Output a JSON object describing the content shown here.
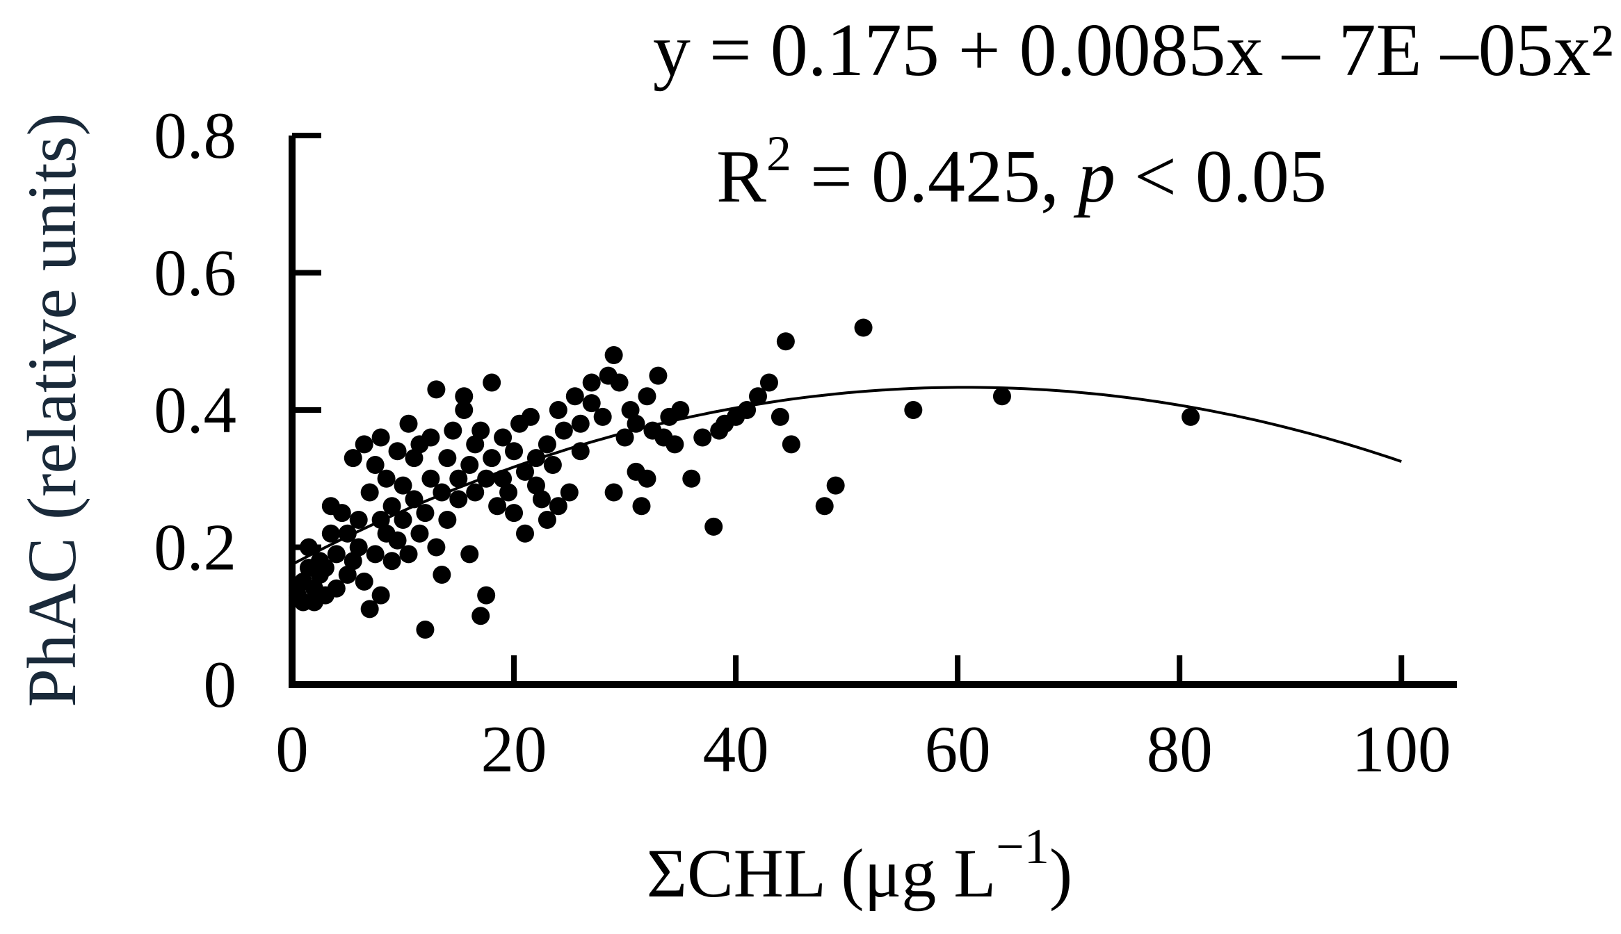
{
  "chart_data": {
    "type": "scatter",
    "title": "",
    "xlabel": "ΣCHL (μg L⁻¹)",
    "xlabel_parts": {
      "main": "ΣCHL (μg L",
      "superscript": "−1",
      "close": ")"
    },
    "ylabel": "PhAC (relative units)",
    "xlim": [
      0,
      105
    ],
    "ylim": [
      0,
      0.8
    ],
    "x_ticks": [
      0,
      20,
      40,
      60,
      80,
      100
    ],
    "x_tick_labels": [
      "0",
      "20",
      "40",
      "60",
      "80",
      "100"
    ],
    "y_ticks": [
      0,
      0.2,
      0.4,
      0.6,
      0.8
    ],
    "y_tick_labels": [
      "0",
      "0.2",
      "0.4",
      "0.6",
      "0.8"
    ],
    "grid": false,
    "fit": {
      "type": "quadratic",
      "coefficients": [
        0.175,
        0.0085,
        -7e-05
      ],
      "x_range": [
        0,
        100
      ],
      "equation_text": "y = 0.175 + 0.0085x – 7E –05x²",
      "r2_label": "R",
      "r2_superscript": "2",
      "r2_text": " = 0.425, ",
      "p_symbol": "p",
      "p_text": " < 0.05"
    },
    "colors": {
      "points": "#000000",
      "axis": "#000000",
      "ylabel": "#1a2a3a",
      "xlabel": "#000000"
    },
    "points": [
      [
        0.5,
        0.13
      ],
      [
        1,
        0.12
      ],
      [
        1,
        0.15
      ],
      [
        1.5,
        0.17
      ],
      [
        1.5,
        0.2
      ],
      [
        2,
        0.12
      ],
      [
        2,
        0.14
      ],
      [
        2.5,
        0.16
      ],
      [
        2.5,
        0.18
      ],
      [
        3,
        0.13
      ],
      [
        3,
        0.17
      ],
      [
        3.5,
        0.22
      ],
      [
        3.5,
        0.26
      ],
      [
        4,
        0.14
      ],
      [
        4,
        0.19
      ],
      [
        4.5,
        0.25
      ],
      [
        5,
        0.16
      ],
      [
        5,
        0.22
      ],
      [
        5.5,
        0.33
      ],
      [
        5.5,
        0.18
      ],
      [
        6,
        0.2
      ],
      [
        6,
        0.24
      ],
      [
        6.5,
        0.15
      ],
      [
        6.5,
        0.35
      ],
      [
        7,
        0.11
      ],
      [
        7,
        0.28
      ],
      [
        7.5,
        0.19
      ],
      [
        7.5,
        0.32
      ],
      [
        8,
        0.13
      ],
      [
        8,
        0.24
      ],
      [
        8,
        0.36
      ],
      [
        8.5,
        0.22
      ],
      [
        8.5,
        0.3
      ],
      [
        9,
        0.18
      ],
      [
        9,
        0.26
      ],
      [
        9.5,
        0.34
      ],
      [
        9.5,
        0.21
      ],
      [
        10,
        0.29
      ],
      [
        10,
        0.24
      ],
      [
        10.5,
        0.38
      ],
      [
        10.5,
        0.19
      ],
      [
        11,
        0.27
      ],
      [
        11,
        0.33
      ],
      [
        11.5,
        0.22
      ],
      [
        11.5,
        0.35
      ],
      [
        12,
        0.08
      ],
      [
        12,
        0.25
      ],
      [
        12.5,
        0.3
      ],
      [
        12.5,
        0.36
      ],
      [
        13,
        0.2
      ],
      [
        13,
        0.43
      ],
      [
        13.5,
        0.28
      ],
      [
        13.5,
        0.16
      ],
      [
        14,
        0.33
      ],
      [
        14,
        0.24
      ],
      [
        14.5,
        0.37
      ],
      [
        15,
        0.3
      ],
      [
        15,
        0.27
      ],
      [
        15.5,
        0.4
      ],
      [
        15.5,
        0.42
      ],
      [
        16,
        0.32
      ],
      [
        16,
        0.19
      ],
      [
        16.5,
        0.35
      ],
      [
        16.5,
        0.28
      ],
      [
        17,
        0.37
      ],
      [
        17,
        0.1
      ],
      [
        17.5,
        0.13
      ],
      [
        17.5,
        0.3
      ],
      [
        18,
        0.44
      ],
      [
        18,
        0.33
      ],
      [
        18.5,
        0.26
      ],
      [
        19,
        0.36
      ],
      [
        19,
        0.3
      ],
      [
        19.5,
        0.28
      ],
      [
        20,
        0.34
      ],
      [
        20,
        0.25
      ],
      [
        20.5,
        0.38
      ],
      [
        21,
        0.22
      ],
      [
        21,
        0.31
      ],
      [
        21.5,
        0.39
      ],
      [
        22,
        0.29
      ],
      [
        22,
        0.33
      ],
      [
        22.5,
        0.27
      ],
      [
        23,
        0.35
      ],
      [
        23,
        0.24
      ],
      [
        23.5,
        0.32
      ],
      [
        24,
        0.4
      ],
      [
        24,
        0.26
      ],
      [
        24.5,
        0.37
      ],
      [
        25,
        0.28
      ],
      [
        25.5,
        0.42
      ],
      [
        26,
        0.38
      ],
      [
        26,
        0.34
      ],
      [
        27,
        0.44
      ],
      [
        27,
        0.41
      ],
      [
        28,
        0.39
      ],
      [
        28.5,
        0.45
      ],
      [
        29,
        0.48
      ],
      [
        29,
        0.28
      ],
      [
        29.5,
        0.44
      ],
      [
        30,
        0.36
      ],
      [
        30.5,
        0.4
      ],
      [
        31,
        0.31
      ],
      [
        31,
        0.38
      ],
      [
        31.5,
        0.26
      ],
      [
        32,
        0.42
      ],
      [
        32,
        0.3
      ],
      [
        32.5,
        0.37
      ],
      [
        33,
        0.45
      ],
      [
        33.5,
        0.36
      ],
      [
        34,
        0.39
      ],
      [
        34.5,
        0.35
      ],
      [
        35,
        0.4
      ],
      [
        36,
        0.3
      ],
      [
        37,
        0.36
      ],
      [
        38,
        0.23
      ],
      [
        38.5,
        0.37
      ],
      [
        39,
        0.38
      ],
      [
        40,
        0.39
      ],
      [
        41,
        0.4
      ],
      [
        42,
        0.42
      ],
      [
        43,
        0.44
      ],
      [
        44,
        0.39
      ],
      [
        44.5,
        0.5
      ],
      [
        45,
        0.35
      ],
      [
        48,
        0.26
      ],
      [
        49,
        0.29
      ],
      [
        51.5,
        0.52
      ],
      [
        56,
        0.4
      ],
      [
        64,
        0.42
      ],
      [
        81,
        0.39
      ]
    ]
  }
}
